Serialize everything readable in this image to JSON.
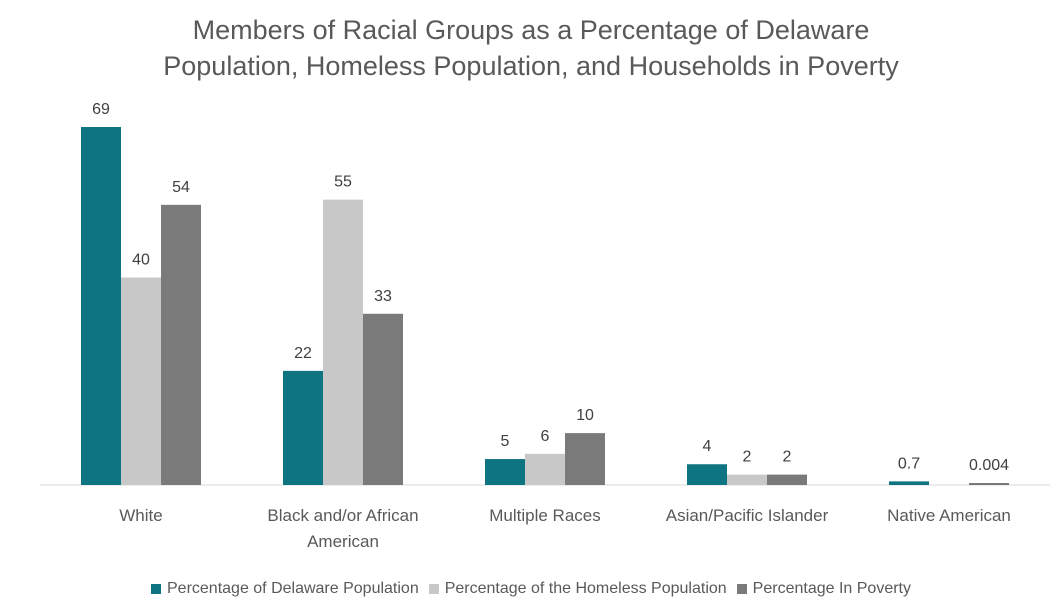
{
  "chart_data": {
    "type": "bar",
    "title_lines": [
      "Members of Racial Groups as a Percentage of Delaware",
      "Population, Homeless Population, and Households in Poverty"
    ],
    "categories": [
      [
        "White"
      ],
      [
        "Black and/or African",
        "American"
      ],
      [
        "Multiple Races"
      ],
      [
        "Asian/Pacific Islander"
      ],
      [
        "Native American"
      ]
    ],
    "series": [
      {
        "name": "Percentage of Delaware Population",
        "color": "#0e7482",
        "values": [
          69,
          22,
          5,
          4,
          0.7
        ],
        "labels": [
          "69",
          "22",
          "5",
          "4",
          "0.7"
        ]
      },
      {
        "name": "Percentage of the Homeless Population",
        "color": "#c8c8c8",
        "values": [
          40,
          55,
          6,
          2,
          0
        ],
        "labels": [
          "40",
          "55",
          "6",
          "2",
          ""
        ]
      },
      {
        "name": "Percentage In Poverty",
        "color": "#7a7a7a",
        "values": [
          54,
          33,
          10,
          2,
          0.004
        ],
        "labels": [
          "54",
          "33",
          "10",
          "2",
          "0.004"
        ]
      }
    ],
    "ylim": [
      0,
      69
    ],
    "grid": false,
    "legend_position": "bottom"
  }
}
